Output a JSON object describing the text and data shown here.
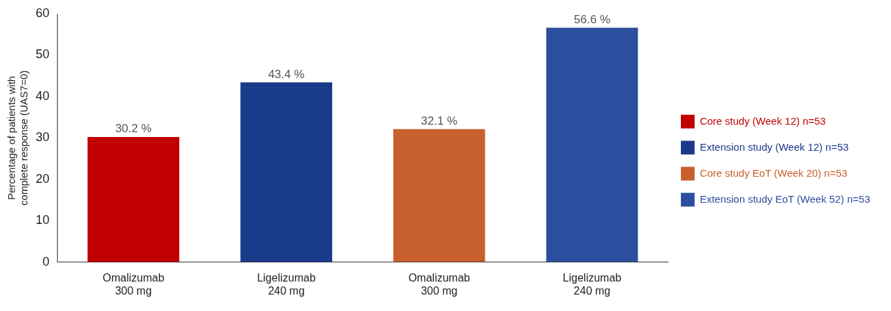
{
  "chart_data": {
    "type": "bar",
    "ylabel": "Percentage of patients with complete response (UAS7=0)",
    "categories": [
      "Omalizumab 300 mg",
      "Ligelizumab 240 mg",
      "Omalizumab 300 mg",
      "Ligelizumab 240 mg"
    ],
    "series": [
      {
        "name": "Core study (Week 12) n=53",
        "color": "#c00000",
        "values": [
          30.2,
          null,
          null,
          null
        ],
        "value_labels": [
          "30.2 %",
          null,
          null,
          null
        ]
      },
      {
        "name": "Extension study (Week 12) n=53",
        "color": "#1a3a8a",
        "values": [
          null,
          43.4,
          null,
          null
        ],
        "value_labels": [
          null,
          "43.4 %",
          null,
          null
        ]
      },
      {
        "name": "Core study EoT (Week 20) n=53",
        "color": "#c8602e",
        "values": [
          null,
          null,
          32.1,
          null
        ],
        "value_labels": [
          null,
          null,
          "32.1 %",
          null
        ]
      },
      {
        "name": "Extension study EoT (Week 52) n=53",
        "color": "#2b4f9e",
        "values": [
          null,
          null,
          null,
          56.6
        ],
        "value_labels": [
          null,
          null,
          null,
          "56.6 %"
        ]
      }
    ],
    "ylim": [
      0,
      60
    ],
    "yticks": [
      0,
      10,
      20,
      30,
      40,
      50,
      60
    ],
    "grid": false,
    "legend": "right"
  }
}
